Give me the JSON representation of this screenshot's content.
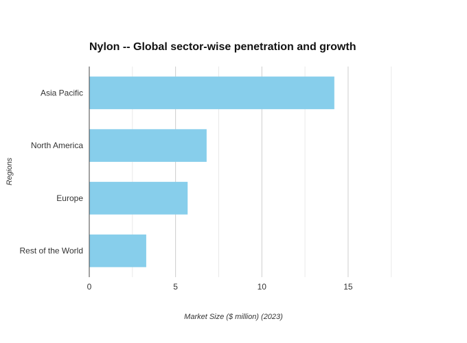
{
  "chart_data": {
    "type": "bar",
    "orientation": "horizontal",
    "title": "Nylon -- Global sector-wise penetration and growth",
    "xlabel": "Market Size ($ million) (2023)",
    "ylabel": "Regions",
    "categories": [
      "Asia Pacific",
      "North America",
      "Europe",
      "Rest of the World"
    ],
    "values": [
      14.2,
      6.8,
      5.7,
      3.3
    ],
    "xlim": [
      0,
      19.5
    ],
    "xticks": [
      0,
      5,
      10,
      15
    ],
    "grid": true,
    "legend": "none",
    "bar_color": "#87CEEB"
  }
}
